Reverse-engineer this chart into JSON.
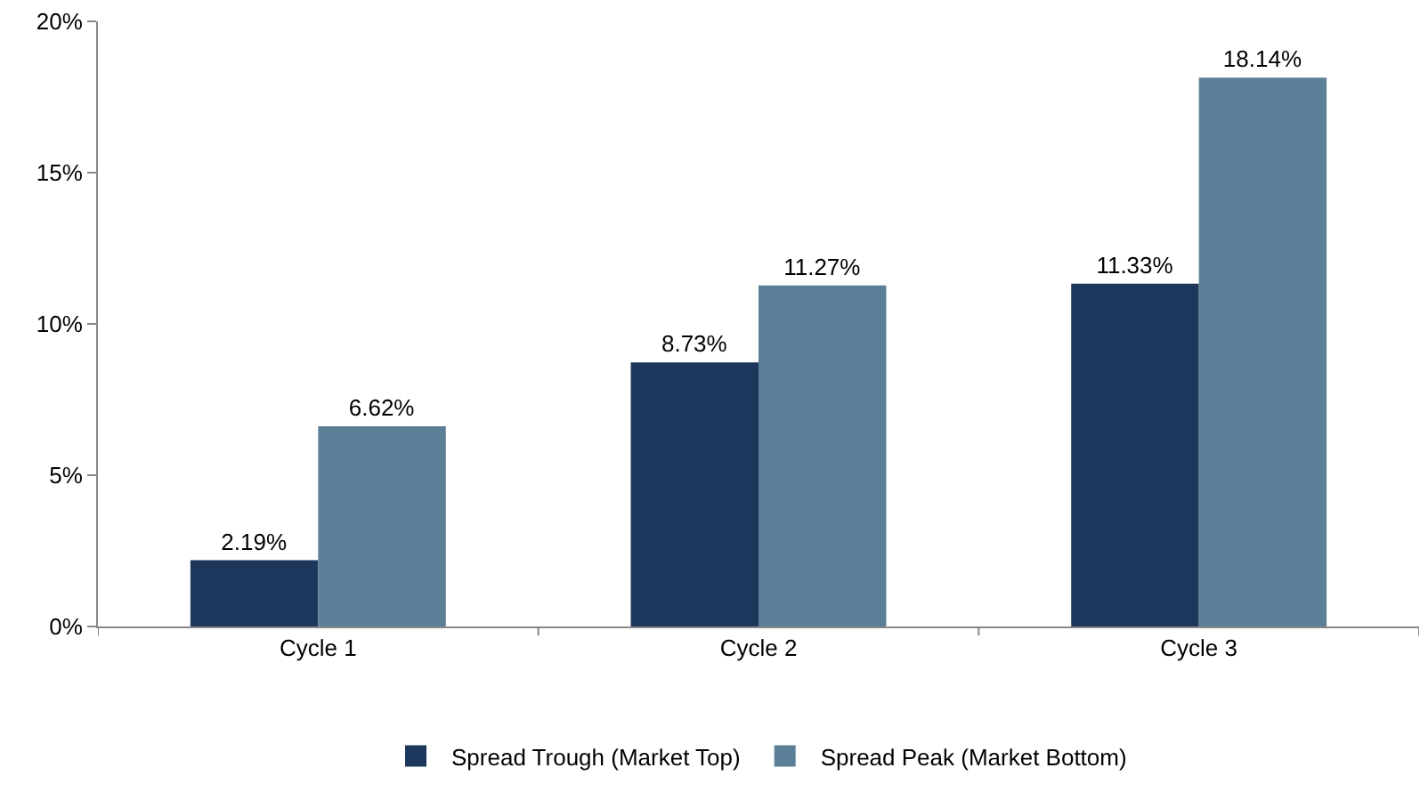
{
  "chart_data": {
    "type": "bar",
    "categories": [
      "Cycle 1",
      "Cycle 2",
      "Cycle 3"
    ],
    "series": [
      {
        "name": "Spread Trough (Market Top)",
        "color": "#1d365c",
        "values": [
          2.19,
          8.73,
          11.33
        ],
        "value_labels": [
          "2.19%",
          "8.73%",
          "11.33%"
        ]
      },
      {
        "name": "Spread Peak (Market Bottom)",
        "color": "#5b7f96",
        "values": [
          6.62,
          11.27,
          18.14
        ],
        "value_labels": [
          "6.62%",
          "11.27%",
          "18.14%"
        ]
      }
    ],
    "ylim": [
      0,
      20
    ],
    "yticks": [
      {
        "value": 0,
        "label": "0%"
      },
      {
        "value": 5,
        "label": "5%"
      },
      {
        "value": 10,
        "label": "10%"
      },
      {
        "value": 15,
        "label": "15%"
      },
      {
        "value": 20,
        "label": "20%"
      }
    ],
    "legend": "bottom"
  }
}
